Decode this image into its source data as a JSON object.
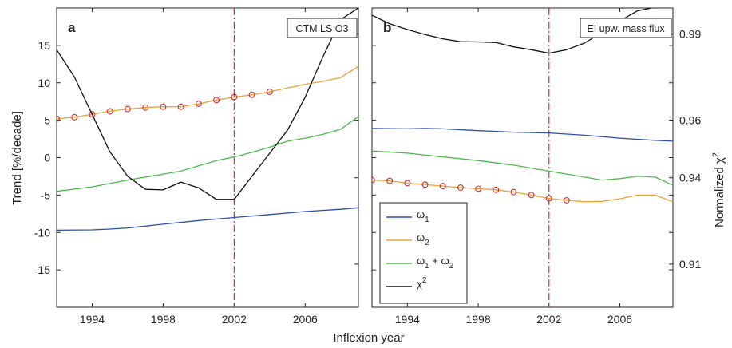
{
  "chart_data": [
    {
      "panel": "a",
      "type": "line",
      "box_label": "CTM LS O3",
      "xlim": [
        1992,
        2009
      ],
      "x_ticks": [
        1994,
        1998,
        2002,
        2006
      ],
      "ylabel": "Trend [%/decade]",
      "ylim": [
        -20,
        20
      ],
      "y_ticks": [
        -15,
        -10,
        -5,
        0,
        5,
        10,
        15
      ],
      "y2lim": [
        0.895,
        0.999
      ],
      "vline_x": 2002,
      "series": [
        {
          "name": "ω1",
          "color": "#2b4fa8",
          "axis": "left",
          "x": [
            1992,
            1994,
            1995,
            1996,
            1998,
            2000,
            2002,
            2004,
            2006,
            2008,
            2009
          ],
          "y": [
            -9.7,
            -9.65,
            -9.55,
            -9.4,
            -8.9,
            -8.4,
            -8.0,
            -7.6,
            -7.2,
            -6.9,
            -6.7
          ]
        },
        {
          "name": "ω2",
          "color": "#e8a33a",
          "axis": "left",
          "markers_to": 2004,
          "x": [
            1992,
            1993,
            1994,
            1995,
            1996,
            1997,
            1998,
            1999,
            2000,
            2001,
            2002,
            2003,
            2004,
            2005,
            2006,
            2007,
            2008,
            2009
          ],
          "y": [
            5.2,
            5.4,
            5.8,
            6.2,
            6.5,
            6.7,
            6.8,
            6.8,
            7.2,
            7.7,
            8.1,
            8.4,
            8.8,
            9.3,
            9.8,
            10.2,
            10.7,
            12.2
          ]
        },
        {
          "name": "ω1 + ω2",
          "color": "#4cb84a",
          "axis": "left",
          "x": [
            1992,
            1994,
            1996,
            1998,
            1999,
            2000,
            2001,
            2002,
            2003,
            2004,
            2005,
            2006,
            2007,
            2008,
            2009
          ],
          "y": [
            -4.5,
            -3.9,
            -3.0,
            -2.2,
            -1.8,
            -1.1,
            -0.4,
            0.1,
            0.7,
            1.4,
            2.2,
            2.6,
            3.1,
            3.8,
            5.5
          ]
        },
        {
          "name": "χ2",
          "color": "#111111",
          "axis": "right",
          "x": [
            1992,
            1993,
            1994,
            1995,
            1996,
            1997,
            1998,
            1999,
            2000,
            2001,
            2002,
            2003,
            2004,
            2005,
            2006,
            2007,
            2008,
            2009
          ],
          "y": [
            0.9845,
            0.975,
            0.962,
            0.949,
            0.9405,
            0.936,
            0.9358,
            0.9385,
            0.9365,
            0.9325,
            0.9325,
            0.9405,
            0.9485,
            0.9565,
            0.968,
            0.982,
            0.995,
            0.999
          ]
        }
      ]
    },
    {
      "panel": "b",
      "type": "line",
      "box_label": "EI upw. mass flux",
      "xlim": [
        1992,
        2009
      ],
      "x_ticks": [
        1994,
        1998,
        2002,
        2006
      ],
      "ylabel": "Normalized χ2",
      "ylim": [
        -20,
        20
      ],
      "y2lim": [
        0.895,
        0.999
      ],
      "y2_ticks": [
        0.91,
        0.94,
        0.96,
        0.99
      ],
      "vline_x": 2002,
      "series": [
        {
          "name": "ω1",
          "color": "#2b4fa8",
          "axis": "left",
          "x": [
            1992,
            1994,
            1995,
            1996,
            1998,
            2000,
            2002,
            2004,
            2006,
            2008,
            2009
          ],
          "y": [
            3.9,
            3.85,
            3.9,
            3.85,
            3.6,
            3.4,
            3.3,
            3.0,
            2.6,
            2.3,
            2.2
          ]
        },
        {
          "name": "ω2",
          "color": "#e8a33a",
          "axis": "left",
          "markers_to": 2003,
          "x": [
            1992,
            1993,
            1994,
            1995,
            1996,
            1997,
            1998,
            1999,
            2000,
            2001,
            2002,
            2003,
            2004,
            2005,
            2006,
            2007,
            2008,
            2009
          ],
          "y": [
            -3.0,
            -3.1,
            -3.4,
            -3.6,
            -3.8,
            -4.0,
            -4.15,
            -4.3,
            -4.6,
            -5.0,
            -5.45,
            -5.7,
            -5.9,
            -5.85,
            -5.5,
            -5.0,
            -5.0,
            -5.9
          ]
        },
        {
          "name": "ω1 + ω2",
          "color": "#4cb84a",
          "axis": "left",
          "x": [
            1992,
            1994,
            1996,
            1998,
            2000,
            2002,
            2004,
            2005,
            2006,
            2007,
            2008,
            2009
          ],
          "y": [
            0.9,
            0.6,
            0.1,
            -0.4,
            -1.0,
            -1.8,
            -2.6,
            -3.0,
            -2.8,
            -2.5,
            -2.6,
            -3.7
          ]
        },
        {
          "name": "χ2",
          "color": "#111111",
          "axis": "right",
          "x": [
            1992,
            1993,
            1994,
            1995,
            1996,
            1997,
            1998,
            1999,
            2000,
            2001,
            2002,
            2003,
            2004,
            2005,
            2006,
            2007,
            2008,
            2009
          ],
          "y": [
            0.9965,
            0.9935,
            0.9915,
            0.9898,
            0.9883,
            0.9873,
            0.9872,
            0.987,
            0.9855,
            0.9845,
            0.9833,
            0.9845,
            0.9868,
            0.9905,
            0.9945,
            0.998,
            0.9993,
            0.9998
          ]
        }
      ]
    }
  ],
  "xlabel": "Inflexion year",
  "panel_letters": [
    "a",
    "b"
  ],
  "legend": {
    "placement": "lower-left of panel b",
    "entries": [
      {
        "base": "ω",
        "sub": "1",
        "mid": "",
        "base2": "",
        "sub2": "",
        "sup": "",
        "color": "#2b4fa8"
      },
      {
        "base": "ω",
        "sub": "2",
        "mid": "",
        "base2": "",
        "sub2": "",
        "sup": "",
        "color": "#e8a33a"
      },
      {
        "base": "ω",
        "sub": "1",
        "mid": " + ",
        "base2": "ω",
        "sub2": "2",
        "sup": "",
        "color": "#4cb84a"
      },
      {
        "base": "χ",
        "sub": "",
        "mid": "",
        "base2": "",
        "sub2": "",
        "sup": "2",
        "color": "#111111"
      }
    ]
  },
  "style": {
    "vline_color": "#e0282a",
    "marker_color": "#e0282a",
    "grid": false
  }
}
